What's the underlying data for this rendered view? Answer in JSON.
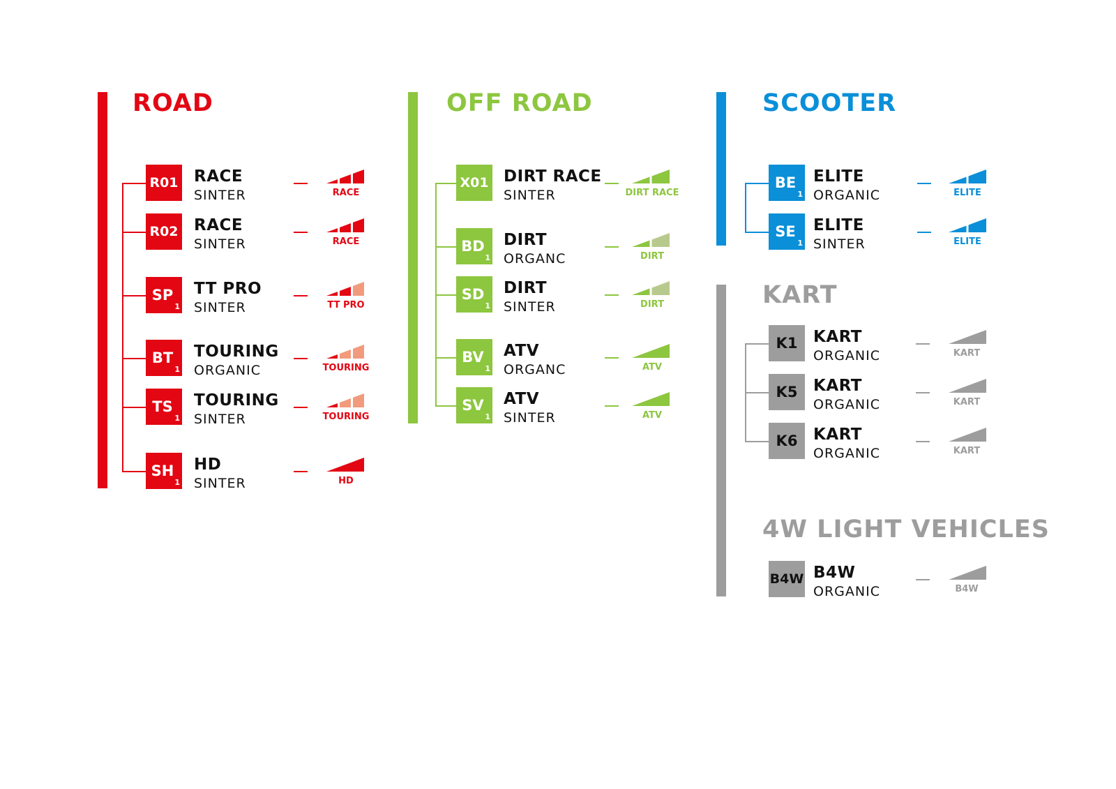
{
  "sections": [
    {
      "id": "road",
      "title": "ROAD",
      "color": "#e30613",
      "light_color": "#f19b7c",
      "items": [
        {
          "code": "R01",
          "sub": "",
          "name": "RACE",
          "material": "SINTER",
          "icon": {
            "label": "RACE",
            "segments": [
              1,
              1,
              1
            ]
          }
        },
        {
          "code": "R02",
          "sub": "",
          "name": "RACE",
          "material": "SINTER",
          "icon": {
            "label": "RACE",
            "segments": [
              1,
              1,
              1
            ]
          }
        },
        {
          "code": "SP",
          "sub": "1",
          "name": "TT PRO",
          "material": "SINTER",
          "icon": {
            "label": "TT PRO",
            "segments": [
              1,
              1,
              0
            ]
          }
        },
        {
          "code": "BT",
          "sub": "1",
          "name": "TOURING",
          "material": "ORGANIC",
          "icon": {
            "label": "TOURING",
            "segments": [
              1,
              0,
              0
            ]
          }
        },
        {
          "code": "TS",
          "sub": "1",
          "name": "TOURING",
          "material": "SINTER",
          "icon": {
            "label": "TOURING",
            "segments": [
              1,
              0,
              0
            ]
          }
        },
        {
          "code": "SH",
          "sub": "1",
          "name": "HD",
          "material": "SINTER",
          "icon": {
            "label": "HD",
            "segments": [
              1
            ]
          }
        }
      ]
    },
    {
      "id": "off-road",
      "title": "OFF ROAD",
      "color": "#8dc63f",
      "light_color": "#b8c98e",
      "items": [
        {
          "code": "X01",
          "sub": "",
          "name": "DIRT RACE",
          "material": "SINTER",
          "icon": {
            "label": "DIRT RACE",
            "segments": [
              1,
              1
            ]
          }
        },
        {
          "code": "BD",
          "sub": "1",
          "name": "DIRT",
          "material": "ORGANC",
          "icon": {
            "label": "DIRT",
            "segments": [
              1,
              0
            ]
          }
        },
        {
          "code": "SD",
          "sub": "1",
          "name": "DIRT",
          "material": "SINTER",
          "icon": {
            "label": "DIRT",
            "segments": [
              1,
              0
            ]
          }
        },
        {
          "code": "BV",
          "sub": "1",
          "name": "ATV",
          "material": "ORGANC",
          "icon": {
            "label": "ATV",
            "segments": [
              1
            ]
          }
        },
        {
          "code": "SV",
          "sub": "1",
          "name": "ATV",
          "material": "SINTER",
          "icon": {
            "label": "ATV",
            "segments": [
              1
            ]
          }
        }
      ]
    },
    {
      "id": "scooter",
      "title": "SCOOTER",
      "color": "#0a8fd8",
      "light_color": "#7cc3ec",
      "items": [
        {
          "code": "BE",
          "sub": "1",
          "name": "ELITE",
          "material": "ORGANIC",
          "icon": {
            "label": "ELITE",
            "segments": [
              1,
              1
            ]
          }
        },
        {
          "code": "SE",
          "sub": "1",
          "name": "ELITE",
          "material": "SINTER",
          "icon": {
            "label": "ELITE",
            "segments": [
              1,
              1
            ]
          }
        }
      ]
    },
    {
      "id": "kart",
      "title": "KART",
      "color": "#9d9d9d",
      "light_color": "#cfcfcf",
      "items": [
        {
          "code": "K1",
          "sub": "",
          "name": "KART",
          "material": "ORGANIC",
          "icon": {
            "label": "KART",
            "segments": [
              1
            ]
          }
        },
        {
          "code": "K5",
          "sub": "",
          "name": "KART",
          "material": "ORGANIC",
          "icon": {
            "label": "KART",
            "segments": [
              1
            ]
          }
        },
        {
          "code": "K6",
          "sub": "",
          "name": "KART",
          "material": "ORGANIC",
          "icon": {
            "label": "KART",
            "segments": [
              1
            ]
          }
        }
      ]
    },
    {
      "id": "4w-light-vehicles",
      "title": "4W LIGHT VEHICLES",
      "color": "#9d9d9d",
      "light_color": "#cfcfcf",
      "items": [
        {
          "code": "B4W",
          "sub": "",
          "name": "B4W",
          "material": "ORGANIC",
          "icon": {
            "label": "B4W",
            "segments": [
              1
            ]
          }
        }
      ]
    }
  ]
}
